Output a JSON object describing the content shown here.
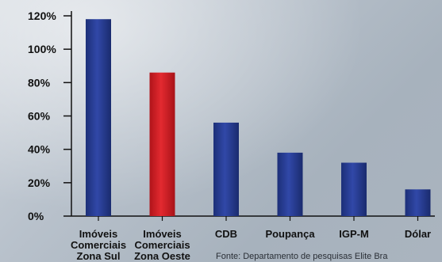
{
  "chart_data": {
    "type": "bar",
    "categories": [
      "Imóveis Comerciais Zona Sul",
      "Imóveis Comerciais Zona Oeste",
      "CDB",
      "Poupança",
      "IGP-M",
      "Dólar"
    ],
    "category_lines": [
      [
        "Imóveis",
        "Comerciais",
        "Zona Sul"
      ],
      [
        "Imóveis",
        "Comerciais",
        "Zona Oeste"
      ],
      [
        "CDB"
      ],
      [
        "Poupança"
      ],
      [
        "IGP-M"
      ],
      [
        "Dólar"
      ]
    ],
    "values": [
      118,
      86,
      56,
      38,
      32,
      16
    ],
    "value_unit": "%",
    "bar_colors": [
      "#243a8c",
      "#d42026",
      "#243a8c",
      "#243a8c",
      "#243a8c",
      "#243a8c"
    ],
    "ylim": [
      0,
      120
    ],
    "yticks": [
      0,
      20,
      40,
      60,
      80,
      100,
      120
    ],
    "ytick_labels": [
      "0%",
      "20%",
      "40%",
      "60%",
      "80%",
      "100%",
      "120%"
    ],
    "grid": false,
    "title": "",
    "xlabel": "",
    "ylabel": ""
  },
  "source": "Fonte: Departamento de pesquisas Elite Bra"
}
